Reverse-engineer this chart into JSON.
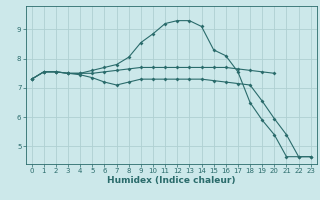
{
  "background_color": "#cce8ea",
  "grid_color": "#afd0d2",
  "line_color": "#2a6b6b",
  "xlabel": "Humidex (Indice chaleur)",
  "xlim": [
    -0.5,
    23.5
  ],
  "ylim": [
    4.4,
    9.8
  ],
  "yticks": [
    5,
    6,
    7,
    8,
    9
  ],
  "xticks": [
    0,
    1,
    2,
    3,
    4,
    5,
    6,
    7,
    8,
    9,
    10,
    11,
    12,
    13,
    14,
    15,
    16,
    17,
    18,
    19,
    20,
    21,
    22,
    23
  ],
  "curve_arch_x": [
    0,
    1,
    2,
    3,
    4,
    5,
    6,
    7,
    8,
    9,
    10,
    11,
    12,
    13,
    14,
    15,
    16,
    17,
    18,
    19,
    20,
    21,
    22,
    23
  ],
  "curve_arch_y": [
    7.3,
    7.55,
    7.55,
    7.5,
    7.5,
    7.6,
    7.7,
    7.8,
    8.05,
    8.55,
    8.85,
    9.2,
    9.3,
    9.3,
    9.1,
    8.3,
    8.1,
    7.55,
    6.5,
    5.9,
    5.4,
    4.65,
    4.65,
    4.65
  ],
  "curve_flat_x": [
    0,
    1,
    2,
    3,
    4,
    5,
    6,
    7,
    8,
    9,
    10,
    11,
    12,
    13,
    14,
    15,
    16,
    17,
    18,
    19,
    20
  ],
  "curve_flat_y": [
    7.3,
    7.55,
    7.55,
    7.5,
    7.5,
    7.5,
    7.55,
    7.6,
    7.65,
    7.7,
    7.7,
    7.7,
    7.7,
    7.7,
    7.7,
    7.7,
    7.7,
    7.65,
    7.6,
    7.55,
    7.5
  ],
  "curve_down_x": [
    0,
    1,
    2,
    3,
    4,
    5,
    6,
    7,
    8,
    9,
    10,
    11,
    12,
    13,
    14,
    15,
    16,
    17,
    18,
    19,
    20,
    21,
    22,
    23
  ],
  "curve_down_y": [
    7.3,
    7.55,
    7.55,
    7.5,
    7.45,
    7.35,
    7.2,
    7.1,
    7.2,
    7.3,
    7.3,
    7.3,
    7.3,
    7.3,
    7.3,
    7.25,
    7.2,
    7.15,
    7.1,
    6.55,
    5.95,
    5.4,
    4.65,
    4.65
  ]
}
